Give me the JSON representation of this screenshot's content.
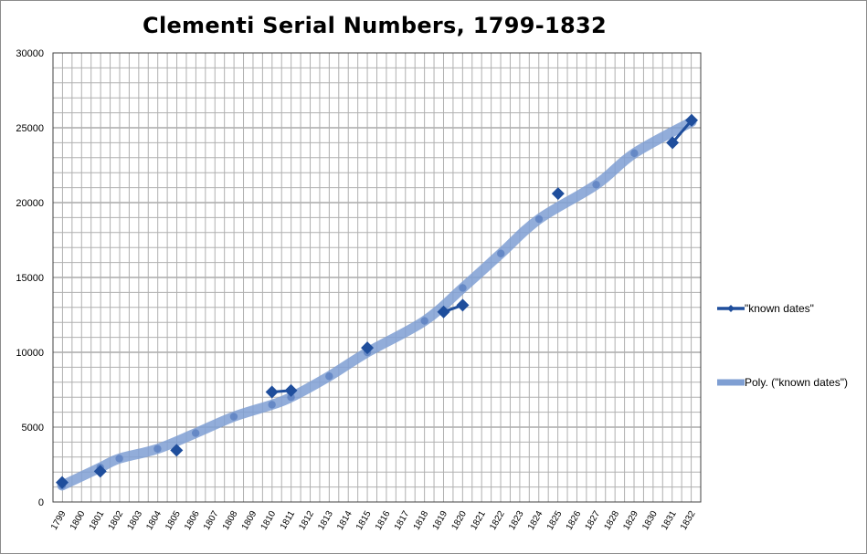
{
  "chart_data": {
    "type": "line",
    "title": "Clementi Serial Numbers, 1799-1832",
    "xlabel": "",
    "ylabel": "",
    "ylim": [
      0,
      30000
    ],
    "yticks": [
      0,
      5000,
      10000,
      15000,
      20000,
      25000,
      30000
    ],
    "x_tick_labels": [
      "1799",
      "1800",
      "1801",
      "1802",
      "1803",
      "1804",
      "1805",
      "1806",
      "1807",
      "1808",
      "1809",
      "1810",
      "1811",
      "1812",
      "1813",
      "1814",
      "1815",
      "1816",
      "1817",
      "1818",
      "1819",
      "1820",
      "1821",
      "1822",
      "1823",
      "1824",
      "1825",
      "1826",
      "1827",
      "1828",
      "1829",
      "1830",
      "1831",
      "1832"
    ],
    "grid": true,
    "legend_position": "right",
    "series": [
      {
        "name": "\"known dates\"",
        "color": "#1f4e9c",
        "marker": "diamond",
        "points": [
          {
            "x": 1799,
            "y": 1300
          },
          {
            "x": 1801,
            "y": 2050
          },
          {
            "x": 1805,
            "y": 3450
          },
          {
            "x": 1810,
            "y": 7350
          },
          {
            "x": 1811,
            "y": 7450
          },
          {
            "x": 1815,
            "y": 10300
          },
          {
            "x": 1819,
            "y": 12700
          },
          {
            "x": 1820,
            "y": 13150
          },
          {
            "x": 1825,
            "y": 20600
          },
          {
            "x": 1831,
            "y": 24000
          },
          {
            "x": 1832,
            "y": 25500
          }
        ],
        "line_segments": [
          [
            3,
            4
          ],
          [
            6,
            7
          ],
          [
            9,
            10
          ]
        ]
      },
      {
        "name": "Poly. (\"known dates\")",
        "color": "#7f9fd3",
        "type": "trendline",
        "points": [
          {
            "x": 1799,
            "y": 1100
          },
          {
            "x": 1801,
            "y": 2300
          },
          {
            "x": 1802,
            "y": 2900
          },
          {
            "x": 1804,
            "y": 3550
          },
          {
            "x": 1806,
            "y": 4600
          },
          {
            "x": 1808,
            "y": 5700
          },
          {
            "x": 1810,
            "y": 6500
          },
          {
            "x": 1811,
            "y": 7000
          },
          {
            "x": 1813,
            "y": 8400
          },
          {
            "x": 1815,
            "y": 10000
          },
          {
            "x": 1818,
            "y": 12100
          },
          {
            "x": 1820,
            "y": 14300
          },
          {
            "x": 1822,
            "y": 16600
          },
          {
            "x": 1824,
            "y": 18900
          },
          {
            "x": 1827,
            "y": 21200
          },
          {
            "x": 1829,
            "y": 23300
          },
          {
            "x": 1832,
            "y": 25400
          }
        ]
      }
    ]
  },
  "colors": {
    "grid_minor": "#b0b0b0",
    "grid_major": "#7f7f7f",
    "axis": "#404040"
  }
}
